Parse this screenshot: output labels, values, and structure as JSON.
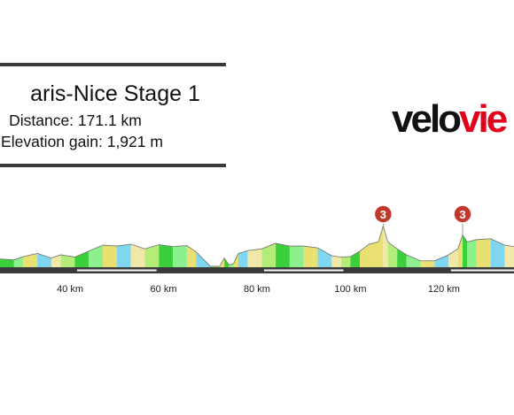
{
  "header": {
    "title": "aris-Nice Stage 1",
    "distance_text": "Distance: 171.1 km",
    "elevation_text": "Elevation gain: 1,921 m"
  },
  "logo": {
    "part1": "velo",
    "part2": "vie"
  },
  "colors": {
    "bar": "#3a3a3a",
    "brand_red": "#e2001a",
    "climb_badge": "#c0392b",
    "gradient_palette": [
      "#3ccf3c",
      "#8cf08c",
      "#e8e070",
      "#7fd6f0",
      "#f0e8a8",
      "#b4ec7a"
    ]
  },
  "chart_data": {
    "type": "area",
    "title": "aris-Nice Stage 1",
    "xlabel": "",
    "ylabel": "",
    "x_unit": "km",
    "x_ticks": [
      40,
      60,
      80,
      100,
      120
    ],
    "x_tick_labels": [
      "40 km",
      "60 km",
      "80 km",
      "100 km",
      "120 km"
    ],
    "xlim": [
      25,
      135
    ],
    "grid": false,
    "profile": {
      "x": [
        25,
        28,
        30,
        33,
        36,
        38,
        41,
        44,
        47,
        50,
        53,
        56,
        59,
        62,
        65,
        67,
        70,
        72,
        73,
        74,
        75,
        76,
        78,
        81,
        84,
        87,
        90,
        93,
        96,
        98,
        100,
        102,
        104,
        106,
        107,
        108,
        110,
        112,
        115,
        118,
        121,
        123,
        124,
        125,
        127,
        130,
        133,
        135
      ],
      "relative_height": [
        0.18,
        0.16,
        0.23,
        0.3,
        0.2,
        0.27,
        0.22,
        0.35,
        0.48,
        0.46,
        0.5,
        0.4,
        0.49,
        0.45,
        0.47,
        0.33,
        0.02,
        0.02,
        0.2,
        0.05,
        0.08,
        0.3,
        0.36,
        0.4,
        0.52,
        0.46,
        0.46,
        0.42,
        0.25,
        0.22,
        0.23,
        0.35,
        0.5,
        0.55,
        0.9,
        0.55,
        0.4,
        0.27,
        0.14,
        0.14,
        0.27,
        0.4,
        0.7,
        0.55,
        0.6,
        0.62,
        0.48,
        0.45
      ]
    },
    "climbs": [
      {
        "category": "3",
        "km": 107
      },
      {
        "category": "3",
        "km": 124
      }
    ]
  }
}
